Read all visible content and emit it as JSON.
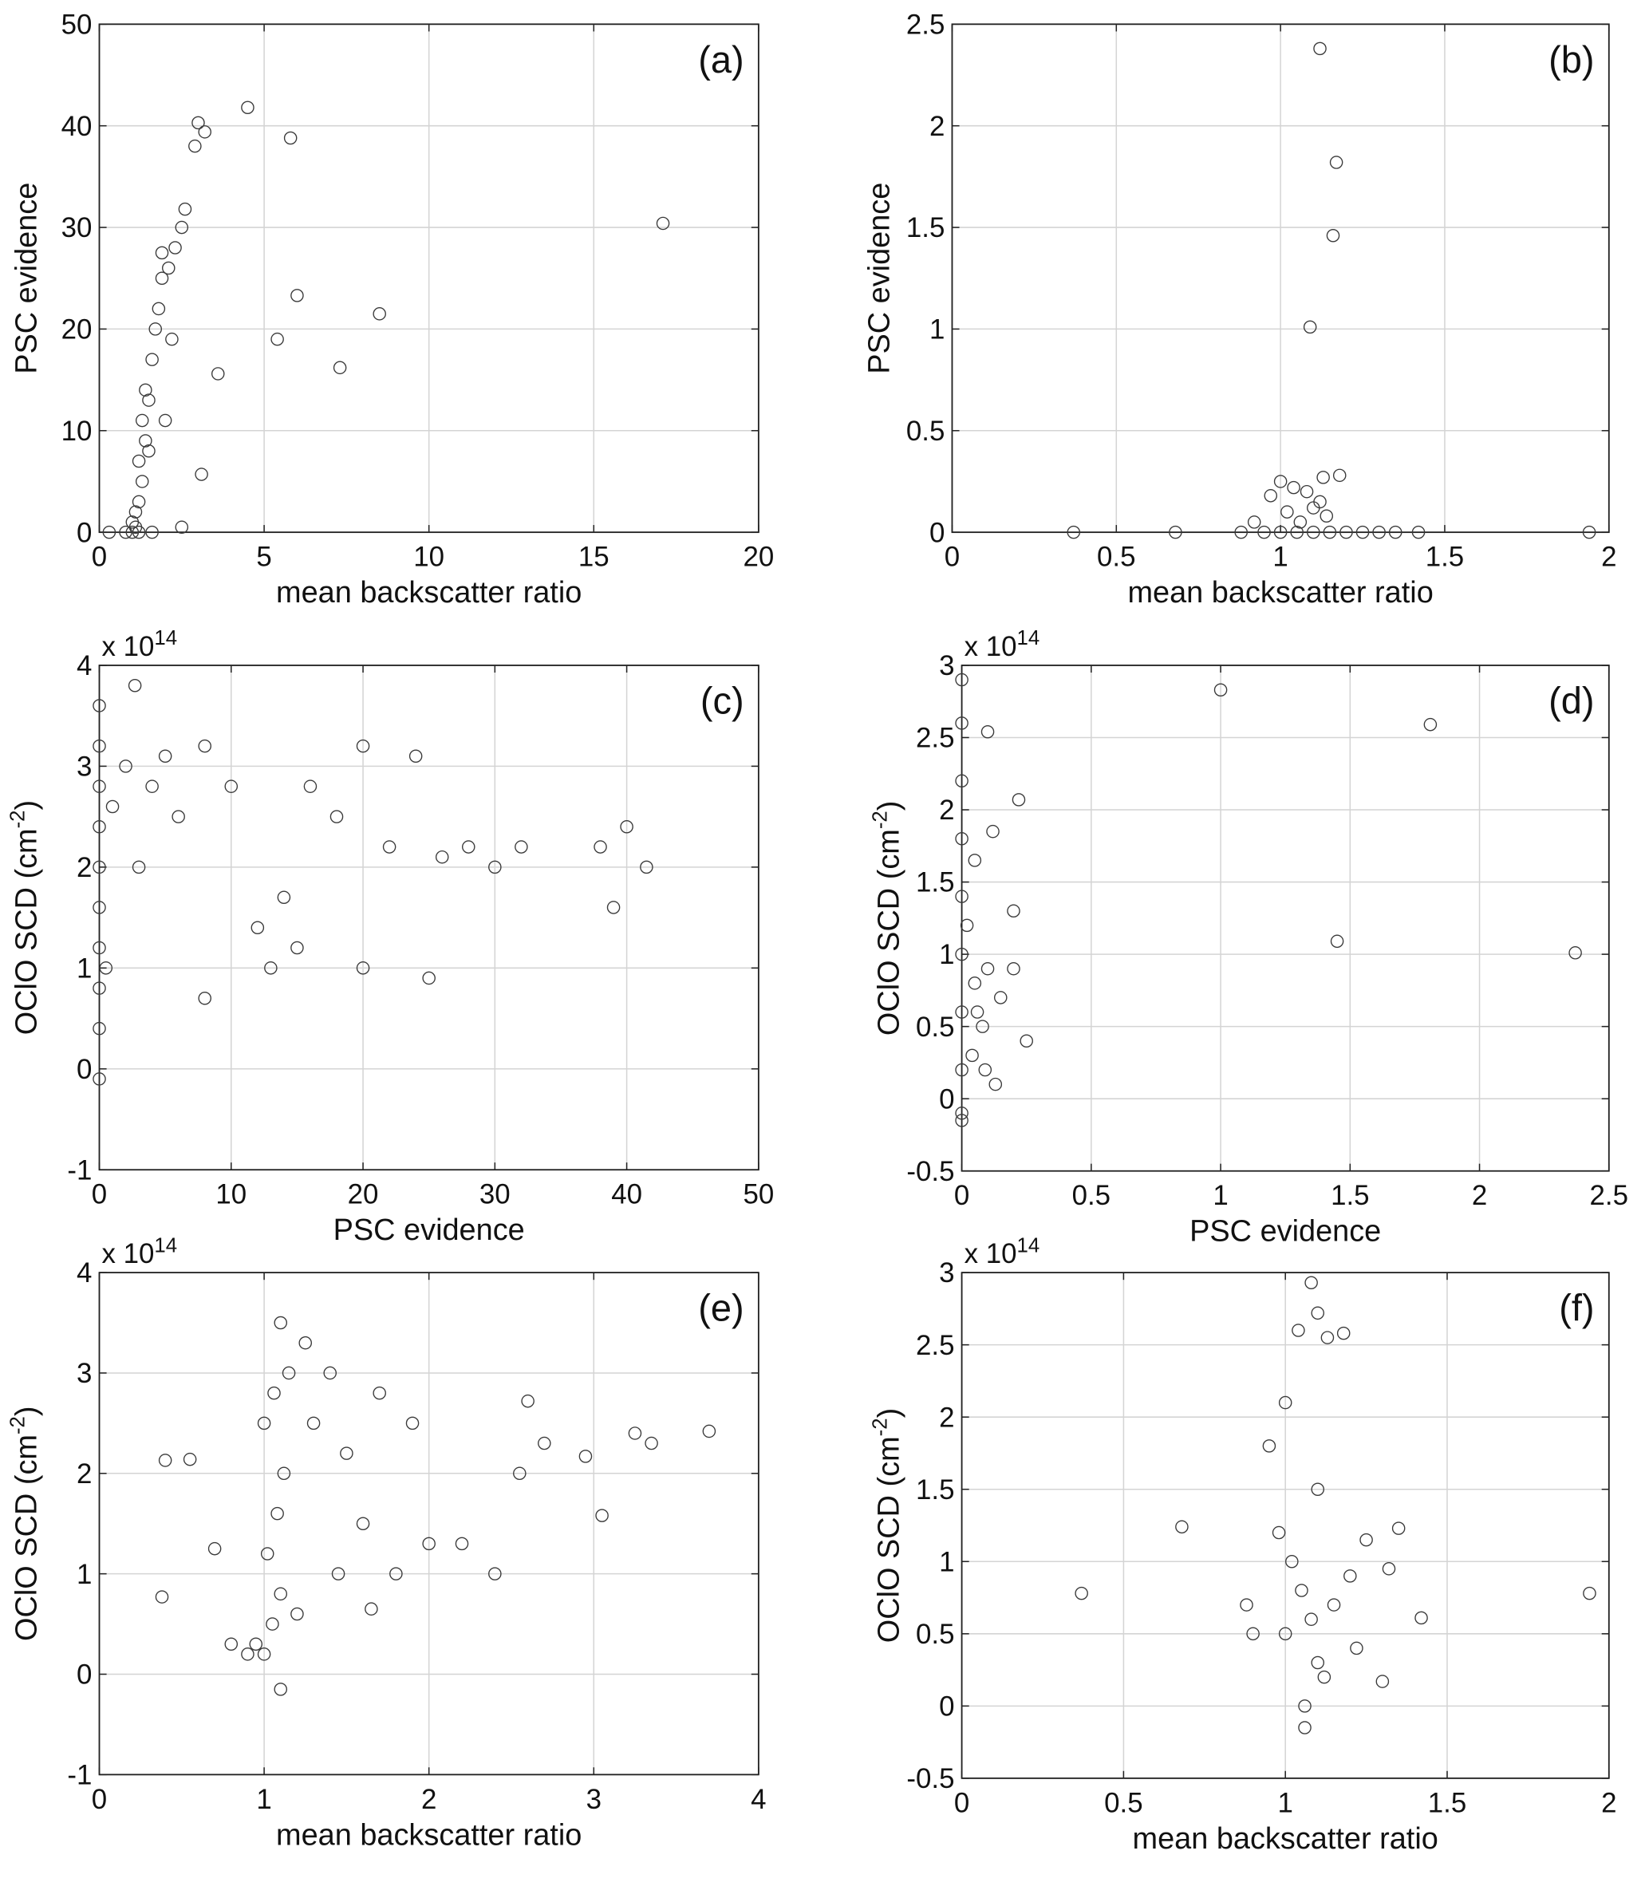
{
  "chart_data": [
    {
      "type": "scatter",
      "panel_label": "(a)",
      "xlabel": "mean backscatter ratio",
      "ylabel": "PSC evidence",
      "xlim": [
        0,
        20
      ],
      "ylim": [
        0,
        50
      ],
      "xticks": [
        0,
        5,
        10,
        15,
        20
      ],
      "yticks": [
        0,
        10,
        20,
        30,
        40,
        50
      ],
      "grid": true,
      "color": "#3a3a3a",
      "x": [
        0.3,
        0.8,
        1.0,
        1.1,
        1.2,
        1.1,
        1.2,
        1.3,
        1.2,
        1.4,
        1.3,
        1.5,
        1.4,
        1.6,
        1.7,
        1.8,
        1.9,
        2.1,
        2.3,
        2.5,
        2.6,
        2.9,
        3.0,
        3.2,
        4.5,
        5.8,
        6.0,
        5.4,
        7.3,
        8.5,
        17.1,
        3.6,
        3.1,
        2.5,
        2.0,
        1.6,
        1.0,
        1.5,
        2.2,
        1.9
      ],
      "values": [
        0,
        0,
        0,
        0.5,
        0,
        2,
        3,
        5,
        7,
        9,
        11,
        13,
        14,
        17,
        20,
        22,
        25,
        26,
        28,
        30,
        31.8,
        38,
        40.3,
        39.4,
        41.8,
        38.8,
        23.3,
        19,
        16.2,
        21.5,
        30.4,
        15.6,
        5.7,
        0.5,
        11,
        0,
        1,
        8,
        19,
        27.5
      ]
    },
    {
      "type": "scatter",
      "panel_label": "(b)",
      "xlabel": "mean backscatter ratio",
      "ylabel": "PSC evidence",
      "xlim": [
        0,
        2
      ],
      "ylim": [
        0,
        2.5
      ],
      "xticks": [
        0,
        0.5,
        1,
        1.5,
        2
      ],
      "yticks": [
        0,
        0.5,
        1,
        1.5,
        2,
        2.5
      ],
      "grid": true,
      "color": "#3a3a3a",
      "x": [
        0.37,
        0.68,
        0.88,
        0.92,
        0.95,
        1.0,
        1.02,
        1.05,
        1.08,
        1.1,
        1.12,
        1.15,
        1.18,
        1.2,
        1.25,
        1.3,
        1.35,
        1.42,
        1.94,
        1.12,
        1.17,
        1.16,
        1.09,
        1.0,
        1.13,
        1.06,
        1.14,
        0.97,
        1.1,
        1.04
      ],
      "values": [
        0,
        0,
        0,
        0.05,
        0,
        0,
        0.1,
        0,
        0.2,
        0,
        0.15,
        0,
        0.28,
        0,
        0,
        0,
        0,
        0,
        0,
        2.38,
        1.82,
        1.46,
        1.01,
        0.25,
        0.27,
        0.05,
        0.08,
        0.18,
        0.12,
        0.22
      ]
    },
    {
      "type": "scatter",
      "panel_label": "(c)",
      "xlabel": "PSC evidence",
      "ylabel": "OClO SCD (cm",
      "ylabel_sup": "-2",
      "ylabel_end": ")",
      "y_multiplier": "x 10",
      "y_multiplier_exp": "14",
      "xlim": [
        0,
        50
      ],
      "ylim": [
        -1,
        4
      ],
      "xticks": [
        0,
        10,
        20,
        30,
        40,
        50
      ],
      "yticks": [
        -1,
        0,
        1,
        2,
        3,
        4
      ],
      "grid": true,
      "color": "#3a3a3a",
      "x": [
        0,
        0,
        0,
        0,
        0,
        0,
        0,
        0,
        0,
        0,
        0.5,
        1,
        2,
        3,
        4,
        5,
        6,
        8,
        10,
        12,
        14,
        16,
        18,
        20,
        22,
        24,
        26,
        28,
        30,
        32,
        38,
        40,
        41.5,
        39,
        2.7,
        8,
        13,
        15,
        25,
        20
      ],
      "values": [
        3.6,
        3.2,
        2.8,
        2.4,
        2,
        1.6,
        1.2,
        0.8,
        0.4,
        -0.1,
        1,
        2.6,
        3,
        2,
        2.8,
        3.1,
        2.5,
        3.2,
        2.8,
        1.4,
        1.7,
        2.8,
        2.5,
        3.2,
        2.2,
        3.1,
        2.1,
        2.2,
        2,
        2.2,
        2.2,
        2.4,
        2,
        1.6,
        3.8,
        0.7,
        1,
        1.2,
        0.9,
        1
      ]
    },
    {
      "type": "scatter",
      "panel_label": "(d)",
      "xlabel": "PSC evidence",
      "ylabel": "OClO SCD (cm",
      "ylabel_sup": "-2",
      "ylabel_end": ")",
      "y_multiplier": "x 10",
      "y_multiplier_exp": "14",
      "xlim": [
        0,
        2.5
      ],
      "ylim": [
        -0.5,
        3
      ],
      "xticks": [
        0,
        0.5,
        1,
        1.5,
        2,
        2.5
      ],
      "yticks": [
        -0.5,
        0,
        0.5,
        1,
        1.5,
        2,
        2.5,
        3
      ],
      "grid": true,
      "color": "#3a3a3a",
      "x": [
        0,
        0,
        0,
        0,
        0,
        0,
        0,
        0,
        0,
        0,
        0.02,
        0.05,
        0.08,
        0.1,
        0.12,
        0.15,
        0.2,
        0.25,
        0.05,
        0.1,
        1.0,
        1.81,
        1.45,
        2.37,
        0.09,
        0.13,
        0.2,
        0.04,
        0.06,
        0.22
      ],
      "values": [
        2.9,
        2.6,
        2.2,
        1.8,
        1.4,
        1,
        0.6,
        0.2,
        -0.1,
        -0.15,
        1.2,
        0.8,
        0.5,
        0.9,
        1.85,
        0.7,
        1.3,
        0.4,
        1.65,
        2.54,
        2.83,
        2.59,
        1.09,
        1.01,
        0.2,
        0.1,
        0.9,
        0.3,
        0.6,
        2.07
      ]
    },
    {
      "type": "scatter",
      "panel_label": "(e)",
      "xlabel": "mean backscatter ratio",
      "ylabel": "OClO SCD (cm",
      "ylabel_sup": "-2",
      "ylabel_end": ")",
      "y_multiplier": "x 10",
      "y_multiplier_exp": "14",
      "xlim": [
        0,
        4
      ],
      "ylim": [
        -1,
        4
      ],
      "xticks": [
        0,
        1,
        2,
        3,
        4
      ],
      "yticks": [
        -1,
        0,
        1,
        2,
        3,
        4
      ],
      "grid": true,
      "color": "#3a3a3a",
      "x": [
        1,
        1.05,
        1.1,
        1.02,
        1.08,
        1.12,
        1.0,
        1.06,
        1.15,
        1.1,
        0.95,
        1.2,
        1.3,
        1.4,
        1.5,
        1.6,
        1.7,
        1.8,
        1.9,
        2.0,
        0.38,
        0.4,
        0.55,
        0.7,
        0.8,
        0.9,
        2.2,
        2.4,
        2.55,
        2.7,
        2.95,
        3.05,
        3.25,
        3.35,
        3.7,
        2.6,
        1.25,
        1.45,
        1.65,
        1.1
      ],
      "values": [
        0.2,
        0.5,
        0.8,
        1.2,
        1.6,
        2.0,
        2.5,
        2.8,
        3.0,
        3.5,
        0.3,
        0.6,
        2.5,
        3.0,
        2.2,
        1.5,
        2.8,
        1.0,
        2.5,
        1.3,
        0.77,
        2.13,
        2.14,
        1.25,
        0.3,
        0.2,
        1.3,
        1.0,
        2.0,
        2.3,
        2.17,
        1.58,
        2.4,
        2.3,
        2.42,
        2.72,
        3.3,
        1.0,
        0.65,
        -0.15
      ]
    },
    {
      "type": "scatter",
      "panel_label": "(f)",
      "xlabel": "mean backscatter ratio",
      "ylabel": "OClO SCD (cm",
      "ylabel_sup": "-2",
      "ylabel_end": ")",
      "y_multiplier": "x 10",
      "y_multiplier_exp": "14",
      "xlim": [
        0,
        2
      ],
      "ylim": [
        -0.5,
        3
      ],
      "xticks": [
        0,
        0.5,
        1,
        1.5,
        2
      ],
      "yticks": [
        -0.5,
        0,
        0.5,
        1,
        1.5,
        2,
        2.5,
        3
      ],
      "grid": true,
      "color": "#3a3a3a",
      "x": [
        1.0,
        1.05,
        1.1,
        1.02,
        1.08,
        1.12,
        0.98,
        1.06,
        1.15,
        1.1,
        0.9,
        1.2,
        0.95,
        1.25,
        1.3,
        0.37,
        0.68,
        1.35,
        1.42,
        1.94,
        1.08,
        1.1,
        1.13,
        1.04,
        1.0,
        1.18,
        0.88,
        1.32,
        1.22,
        1.06
      ],
      "values": [
        0.5,
        0.8,
        0.3,
        1.0,
        0.6,
        0.2,
        1.2,
        0,
        0.7,
        1.5,
        0.5,
        0.9,
        1.8,
        1.15,
        0.17,
        0.78,
        1.24,
        1.23,
        0.61,
        0.78,
        2.93,
        2.72,
        2.55,
        2.6,
        2.1,
        2.58,
        0.7,
        0.95,
        0.4,
        -0.15
      ]
    }
  ]
}
